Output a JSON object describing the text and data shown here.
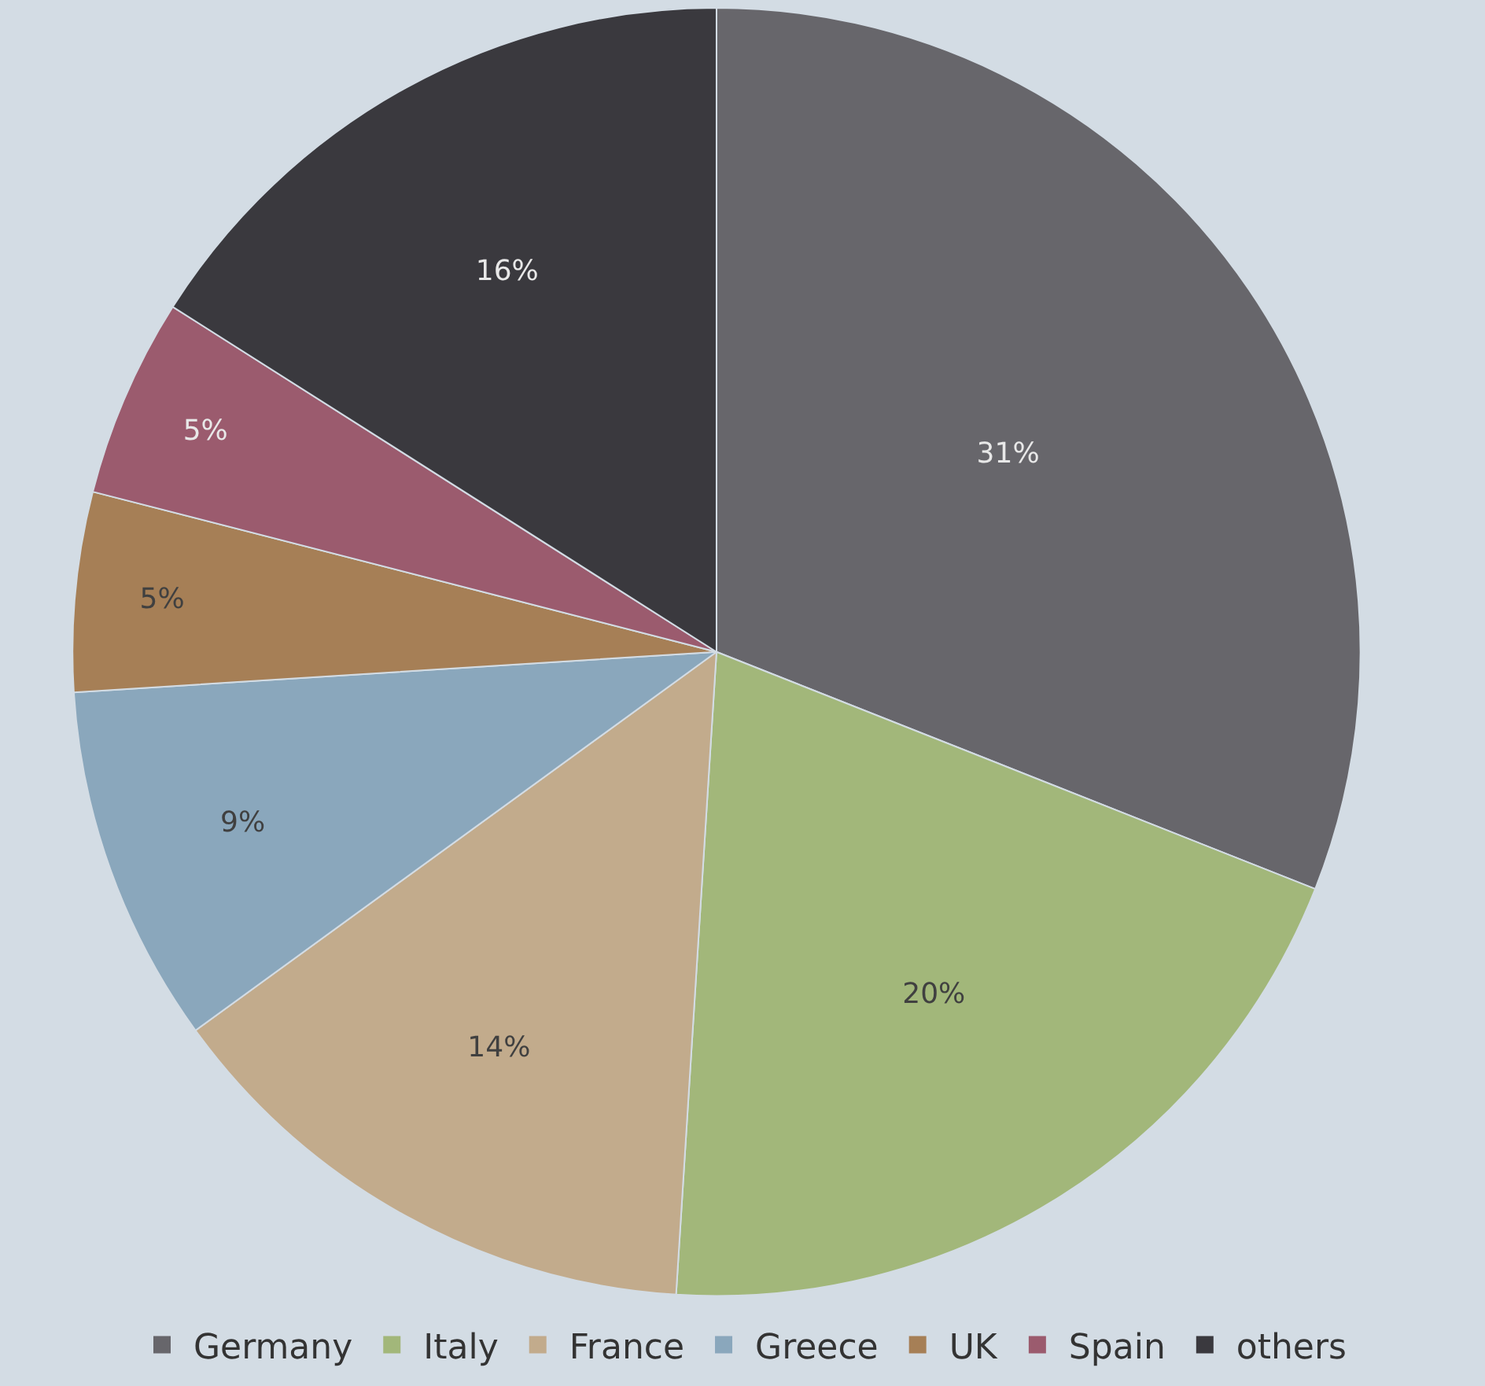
{
  "chart_data": {
    "type": "pie",
    "categories": [
      "Germany",
      "Italy",
      "France",
      "Greece",
      "UK",
      "Spain",
      "others"
    ],
    "values": [
      31,
      20,
      14,
      9,
      5,
      5,
      16
    ],
    "value_labels": [
      "31%",
      "20%",
      "14%",
      "9%",
      "5%",
      "5%",
      "16%"
    ],
    "colors": [
      "#67666b",
      "#a2b77a",
      "#c2ab8c",
      "#8aa7bc",
      "#a67f56",
      "#9b5b6e",
      "#3a393e"
    ],
    "legend": "bottom"
  }
}
